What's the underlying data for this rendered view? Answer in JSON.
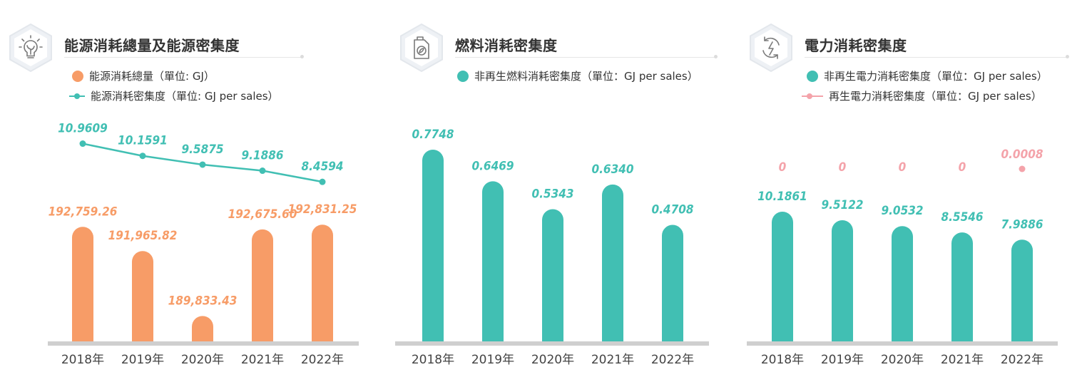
{
  "colors": {
    "orange": "#f79c67",
    "teal": "#41bfb3",
    "pink": "#f4a3aa",
    "axis": "#cfcfcf",
    "text": "#333333"
  },
  "panels": [
    {
      "title": "能源消耗總量及能源密集度",
      "icon": "lightbulb-icon",
      "legend": [
        {
          "marker": "dot",
          "color": "#f79c67",
          "label": "能源消耗總量（單位: GJ）"
        },
        {
          "marker": "line",
          "color": "#41bfb3",
          "label": "能源消耗密集度（單位: GJ per sales）"
        }
      ]
    },
    {
      "title": "燃料消耗密集度",
      "icon": "fuel-can-icon",
      "legend": [
        {
          "marker": "dot",
          "color": "#41bfb3",
          "label": "非再生燃料消耗密集度（單位：GJ per sales）"
        }
      ]
    },
    {
      "title": "電力消耗密集度",
      "icon": "electricity-icon",
      "legend": [
        {
          "marker": "dot",
          "color": "#41bfb3",
          "label": "非再生電力消耗密集度（單位：GJ per sales）"
        },
        {
          "marker": "line",
          "color": "#f4a3aa",
          "label": "再生電力消耗密集度（單位：GJ per sales）"
        }
      ]
    }
  ],
  "chart_data": [
    {
      "type": "bar",
      "title": "能源消耗總量及能源密集度",
      "categories": [
        "2018年",
        "2019年",
        "2020年",
        "2021年",
        "2022年"
      ],
      "series": [
        {
          "name": "能源消耗總量（單位: GJ）",
          "kind": "bar",
          "color": "#f79c67",
          "values": [
            192759.26,
            191965.82,
            189833.43,
            192675.6,
            192831.25
          ],
          "labels": [
            "192,759.26",
            "191,965.82",
            "189,833.43",
            "192,675.60",
            "192,831.25"
          ]
        },
        {
          "name": "能源消耗密集度（單位: GJ per sales）",
          "kind": "line",
          "color": "#41bfb3",
          "values": [
            10.9609,
            10.1591,
            9.5875,
            9.1886,
            8.4594
          ],
          "labels": [
            "10.9609",
            "10.1591",
            "9.5875",
            "9.1886",
            "8.4594"
          ]
        }
      ],
      "bar_scale": "broken",
      "line_scale": "secondary"
    },
    {
      "type": "bar",
      "title": "燃料消耗密集度",
      "categories": [
        "2018年",
        "2019年",
        "2020年",
        "2021年",
        "2022年"
      ],
      "series": [
        {
          "name": "非再生燃料消耗密集度（單位：GJ per sales）",
          "kind": "bar",
          "color": "#41bfb3",
          "values": [
            0.7748,
            0.6469,
            0.5343,
            0.634,
            0.4708
          ],
          "labels": [
            "0.7748",
            "0.6469",
            "0.5343",
            "0.6340",
            "0.4708"
          ]
        }
      ]
    },
    {
      "type": "bar",
      "title": "電力消耗密集度",
      "categories": [
        "2018年",
        "2019年",
        "2020年",
        "2021年",
        "2022年"
      ],
      "series": [
        {
          "name": "非再生電力消耗密集度（單位：GJ per sales）",
          "kind": "bar",
          "color": "#41bfb3",
          "values": [
            10.1861,
            9.5122,
            9.0532,
            8.5546,
            7.9886
          ],
          "labels": [
            "10.1861",
            "9.5122",
            "9.0532",
            "8.5546",
            "7.9886"
          ]
        },
        {
          "name": "再生電力消耗密集度（單位：GJ per sales）",
          "kind": "line",
          "color": "#f4a3aa",
          "values": [
            0,
            0,
            0,
            0,
            0.0008
          ],
          "labels": [
            "0",
            "0",
            "0",
            "0",
            "0.0008"
          ]
        }
      ]
    }
  ]
}
